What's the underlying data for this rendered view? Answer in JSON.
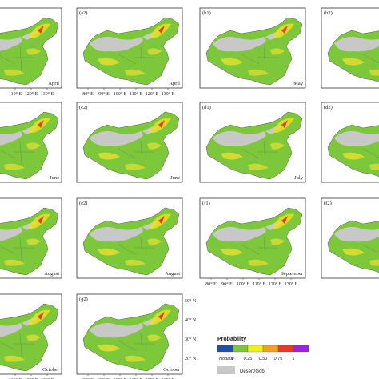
{
  "panels": [
    {
      "month": "April"
    },
    {
      "label": "(a2)",
      "month": "April"
    },
    {
      "label": "(b1)",
      "month": "May"
    },
    {
      "label": "(b2)"
    },
    {
      "month": "June"
    },
    {
      "label": "(c2)",
      "month": "June"
    },
    {
      "label": "(d1)",
      "month": "July"
    },
    {
      "label": "(d2)"
    },
    {
      "month": "August"
    },
    {
      "label": "(e2)",
      "month": "August"
    },
    {
      "label": "(f1)",
      "month": "September"
    },
    {
      "label": "(f2)"
    },
    {
      "month": "October"
    },
    {
      "label": "(g2)",
      "month": "October"
    }
  ],
  "lon_labels": [
    "80° E",
    "90° E",
    "100° E",
    "110° E",
    "120° E",
    "130° E"
  ],
  "lat_labels": [
    "50° N",
    "40° N",
    "30° N",
    "20° N"
  ],
  "legend": {
    "title": "Probability",
    "labels": [
      "Nodata",
      "0",
      "0.25",
      "0.50",
      "0.75",
      "1"
    ],
    "desert": "Desert/Gobi"
  }
}
